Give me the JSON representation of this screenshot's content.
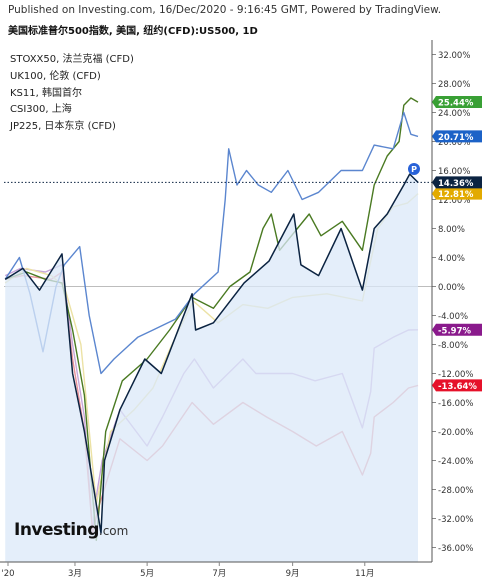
{
  "header": "Published on Investing.com, 16/Dec/2020 - 9:16:45 GMT, Powered by TradingView.",
  "subtitle": "美国标准普尔500指数, 美国, 纽约(CFD):US500, 1D",
  "legend": [
    "STOXX50, 法兰克福 (CFD)",
    "UK100, 伦敦 (CFD)",
    "KS11, 韩国首尔",
    "CSI300, 上海",
    "JP225, 日本东京 (CFD)"
  ],
  "brand": {
    "main": "Investing",
    "domain": ".com"
  },
  "marker_label": "P",
  "colors": {
    "sp500": "#0b2341",
    "sp500_fill": "#dbe8f8",
    "stoxx50": "#c7a6d9",
    "uk100": "#e8929a",
    "ks11": "#4a7a22",
    "csi300": "#5b86cf",
    "jp225": "#ece2a5"
  },
  "chart_data": {
    "type": "line",
    "y_unit": "%",
    "ylim": [
      -38,
      34
    ],
    "yticks": [
      32,
      28,
      24,
      20,
      16,
      12,
      8,
      4,
      0,
      -4,
      -8,
      -12,
      -16,
      -20,
      -24,
      -28,
      -32,
      -36
    ],
    "ytick_labels": [
      "32.00%",
      "28.00%",
      "24.00%",
      "20.00%",
      "16.00%",
      "12.00%",
      "8.00%",
      "4.00%",
      "0.00%",
      "-4.00%",
      "-8.00%",
      "-12.00%",
      "-16.00%",
      "-20.00%",
      "-24.00%",
      "-28.00%",
      "-32.00%",
      "-36.00%"
    ],
    "x_labels": [
      "'20",
      "3月",
      "5月",
      "7月",
      "9月",
      "11月"
    ],
    "x_label_dates": [
      "2020-01-01",
      "2020-03-01",
      "2020-05-01",
      "2020-07-01",
      "2020-09-01",
      "2020-11-01"
    ],
    "x_range": [
      "2020-01-01",
      "2020-12-16"
    ],
    "current_line_value": 14.36,
    "series": [
      {
        "name": "STOXX50",
        "key": "stoxx50",
        "fill": false,
        "end_label": "-5.97%",
        "end_value": -5.97,
        "label_color": "#8a1a8c",
        "points": [
          [
            "2020-01-02",
            1.5
          ],
          [
            "2020-01-15",
            2.5
          ],
          [
            "2020-02-05",
            2.0
          ],
          [
            "2020-02-19",
            3.0
          ],
          [
            "2020-02-28",
            -8.0
          ],
          [
            "2020-03-09",
            -18.0
          ],
          [
            "2020-03-16",
            -34.0
          ],
          [
            "2020-03-18",
            -30.0
          ],
          [
            "2020-03-24",
            -24.0
          ],
          [
            "2020-04-08",
            -17.0
          ],
          [
            "2020-05-01",
            -22.0
          ],
          [
            "2020-05-14",
            -18.0
          ],
          [
            "2020-06-01",
            -12.0
          ],
          [
            "2020-06-10",
            -10.0
          ],
          [
            "2020-06-26",
            -14.0
          ],
          [
            "2020-07-21",
            -10.0
          ],
          [
            "2020-08-01",
            -12.0
          ],
          [
            "2020-09-01",
            -12.0
          ],
          [
            "2020-09-20",
            -13.0
          ],
          [
            "2020-10-13",
            -12.0
          ],
          [
            "2020-10-30",
            -19.5
          ],
          [
            "2020-11-06",
            -14.5
          ],
          [
            "2020-11-09",
            -8.5
          ],
          [
            "2020-11-25",
            -7.0
          ],
          [
            "2020-12-08",
            -6.0
          ],
          [
            "2020-12-16",
            -5.97
          ]
        ]
      },
      {
        "name": "UK100",
        "key": "uk100",
        "fill": false,
        "end_label": "-13.64%",
        "end_value": -13.64,
        "label_color": "#e6112a",
        "points": [
          [
            "2020-01-02",
            1.0
          ],
          [
            "2020-01-17",
            1.5
          ],
          [
            "2020-02-10",
            1.0
          ],
          [
            "2020-02-19",
            2.0
          ],
          [
            "2020-02-28",
            -10.0
          ],
          [
            "2020-03-09",
            -20.0
          ],
          [
            "2020-03-16",
            -34.0
          ],
          [
            "2020-03-20",
            -31.0
          ],
          [
            "2020-04-08",
            -21.0
          ],
          [
            "2020-05-01",
            -24.0
          ],
          [
            "2020-05-14",
            -22.0
          ],
          [
            "2020-06-08",
            -16.0
          ],
          [
            "2020-06-26",
            -19.0
          ],
          [
            "2020-07-21",
            -16.0
          ],
          [
            "2020-08-10",
            -18.0
          ],
          [
            "2020-09-01",
            -20.0
          ],
          [
            "2020-09-21",
            -22.0
          ],
          [
            "2020-10-13",
            -20.0
          ],
          [
            "2020-10-30",
            -26.0
          ],
          [
            "2020-11-06",
            -23.0
          ],
          [
            "2020-11-09",
            -18.0
          ],
          [
            "2020-11-25",
            -16.0
          ],
          [
            "2020-12-08",
            -14.0
          ],
          [
            "2020-12-16",
            -13.64
          ]
        ]
      },
      {
        "name": "JP225",
        "key": "jp225",
        "fill": false,
        "end_label": "12.81%",
        "end_value": 12.81,
        "label_color": "#e2aa00",
        "points": [
          [
            "2020-01-02",
            0.5
          ],
          [
            "2020-01-20",
            2.5
          ],
          [
            "2020-02-10",
            1.5
          ],
          [
            "2020-02-21",
            0.0
          ],
          [
            "2020-03-06",
            -8.0
          ],
          [
            "2020-03-19",
            -30.0
          ],
          [
            "2020-03-31",
            -20.0
          ],
          [
            "2020-04-20",
            -17.0
          ],
          [
            "2020-05-06",
            -14.0
          ],
          [
            "2020-05-22",
            -8.0
          ],
          [
            "2020-06-09",
            -2.0
          ],
          [
            "2020-06-30",
            -5.0
          ],
          [
            "2020-07-21",
            -2.5
          ],
          [
            "2020-08-11",
            -3.0
          ],
          [
            "2020-09-01",
            -1.5
          ],
          [
            "2020-09-30",
            -1.0
          ],
          [
            "2020-10-30",
            -2.0
          ],
          [
            "2020-11-06",
            3.5
          ],
          [
            "2020-11-12",
            8.0
          ],
          [
            "2020-11-25",
            11.0
          ],
          [
            "2020-12-07",
            11.5
          ],
          [
            "2020-12-16",
            12.81
          ]
        ]
      },
      {
        "name": "KS11",
        "key": "ks11",
        "fill": false,
        "end_label": "25.44%",
        "end_value": 25.44,
        "label_color": "#39a035",
        "points": [
          [
            "2020-01-02",
            1.0
          ],
          [
            "2020-01-20",
            2.0
          ],
          [
            "2020-02-05",
            1.0
          ],
          [
            "2020-02-19",
            0.5
          ],
          [
            "2020-02-28",
            -6.0
          ],
          [
            "2020-03-09",
            -15.0
          ],
          [
            "2020-03-19",
            -35.0
          ],
          [
            "2020-03-27",
            -20.0
          ],
          [
            "2020-04-10",
            -13.0
          ],
          [
            "2020-05-01",
            -10.0
          ],
          [
            "2020-05-20",
            -6.0
          ],
          [
            "2020-06-08",
            -1.5
          ],
          [
            "2020-06-26",
            -3.0
          ],
          [
            "2020-07-10",
            0.0
          ],
          [
            "2020-07-27",
            2.0
          ],
          [
            "2020-08-07",
            8.0
          ],
          [
            "2020-08-14",
            10.0
          ],
          [
            "2020-08-21",
            5.0
          ],
          [
            "2020-09-15",
            10.0
          ],
          [
            "2020-09-25",
            7.0
          ],
          [
            "2020-10-13",
            9.0
          ],
          [
            "2020-10-30",
            5.0
          ],
          [
            "2020-11-09",
            14.0
          ],
          [
            "2020-11-20",
            18.0
          ],
          [
            "2020-11-30",
            20.0
          ],
          [
            "2020-12-04",
            25.0
          ],
          [
            "2020-12-10",
            26.0
          ],
          [
            "2020-12-16",
            25.44
          ]
        ]
      },
      {
        "name": "CSI300",
        "key": "csi300",
        "fill": false,
        "end_label": "20.71%",
        "end_value": 20.71,
        "label_color": "#1c62c7",
        "points": [
          [
            "2020-01-02",
            1.0
          ],
          [
            "2020-01-14",
            4.0
          ],
          [
            "2020-01-23",
            -1.0
          ],
          [
            "2020-02-03",
            -9.0
          ],
          [
            "2020-02-14",
            0.0
          ],
          [
            "2020-02-21",
            3.0
          ],
          [
            "2020-03-05",
            5.5
          ],
          [
            "2020-03-13",
            -4.0
          ],
          [
            "2020-03-23",
            -12.0
          ],
          [
            "2020-04-03",
            -10.0
          ],
          [
            "2020-04-23",
            -7.0
          ],
          [
            "2020-05-06",
            -6.0
          ],
          [
            "2020-05-25",
            -4.5
          ],
          [
            "2020-06-10",
            -1.0
          ],
          [
            "2020-06-30",
            2.0
          ],
          [
            "2020-07-06",
            12.0
          ],
          [
            "2020-07-09",
            19.0
          ],
          [
            "2020-07-16",
            14.0
          ],
          [
            "2020-07-24",
            16.0
          ],
          [
            "2020-08-03",
            14.0
          ],
          [
            "2020-08-14",
            13.0
          ],
          [
            "2020-08-28",
            16.0
          ],
          [
            "2020-09-09",
            12.0
          ],
          [
            "2020-09-23",
            13.0
          ],
          [
            "2020-10-12",
            16.0
          ],
          [
            "2020-10-30",
            16.0
          ],
          [
            "2020-11-09",
            19.5
          ],
          [
            "2020-11-25",
            19.0
          ],
          [
            "2020-12-04",
            24.0
          ],
          [
            "2020-12-10",
            21.0
          ],
          [
            "2020-12-16",
            20.71
          ]
        ]
      },
      {
        "name": "US500",
        "key": "sp500",
        "fill": true,
        "end_label": "14.36%",
        "end_value": 14.36,
        "label_color": "#0b2341",
        "points": [
          [
            "2020-01-02",
            1.0
          ],
          [
            "2020-01-17",
            2.5
          ],
          [
            "2020-01-31",
            -0.5
          ],
          [
            "2020-02-19",
            4.5
          ],
          [
            "2020-02-28",
            -12.0
          ],
          [
            "2020-03-09",
            -20.0
          ],
          [
            "2020-03-23",
            -34.0
          ],
          [
            "2020-03-26",
            -24.0
          ],
          [
            "2020-04-08",
            -17.0
          ],
          [
            "2020-04-29",
            -10.0
          ],
          [
            "2020-05-13",
            -12.0
          ],
          [
            "2020-06-08",
            -1.0
          ],
          [
            "2020-06-11",
            -6.0
          ],
          [
            "2020-06-26",
            -5.0
          ],
          [
            "2020-07-22",
            0.5
          ],
          [
            "2020-08-12",
            3.5
          ],
          [
            "2020-09-02",
            10.0
          ],
          [
            "2020-09-08",
            3.0
          ],
          [
            "2020-09-23",
            1.5
          ],
          [
            "2020-10-12",
            8.0
          ],
          [
            "2020-10-30",
            -0.5
          ],
          [
            "2020-11-09",
            8.0
          ],
          [
            "2020-11-20",
            10.0
          ],
          [
            "2020-12-04",
            14.0
          ],
          [
            "2020-12-09",
            15.5
          ],
          [
            "2020-12-16",
            14.36
          ]
        ]
      }
    ]
  }
}
